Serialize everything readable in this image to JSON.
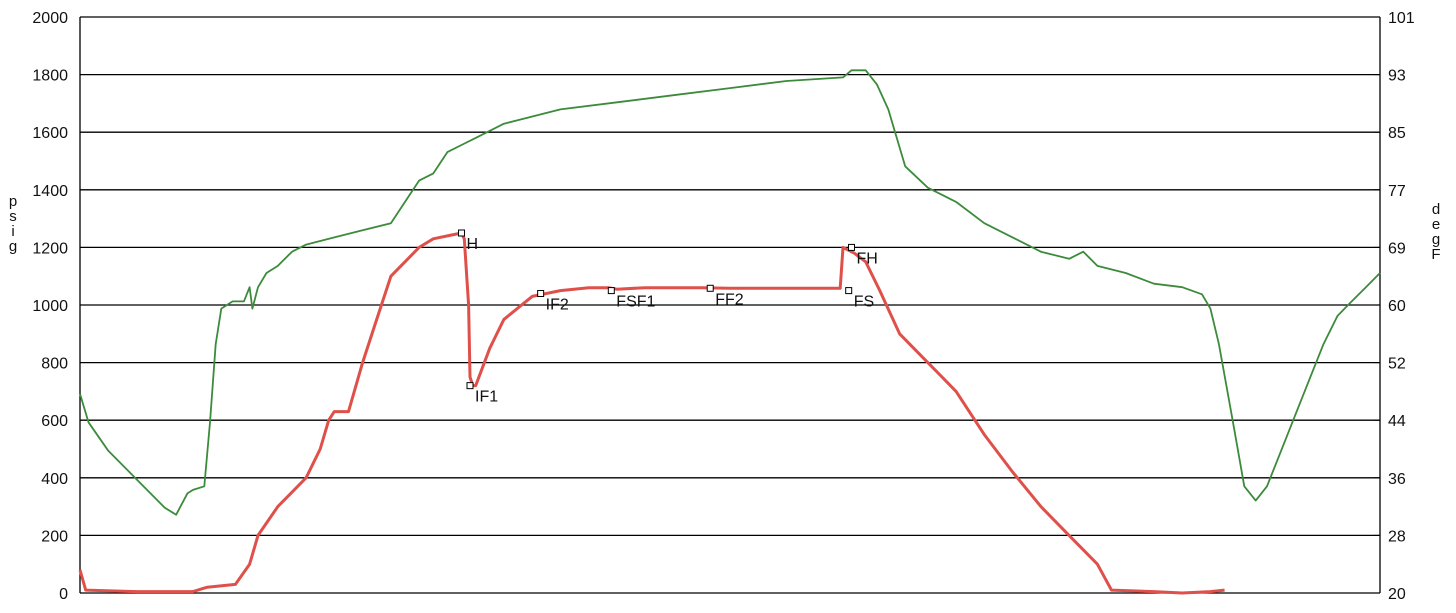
{
  "chart_data": {
    "type": "line",
    "grid": true,
    "x": [
      0,
      1,
      2,
      3,
      4,
      5,
      6,
      7,
      8,
      9,
      10,
      11,
      12,
      13,
      14,
      15,
      16,
      17,
      18,
      19,
      20,
      21,
      22,
      23,
      24,
      25,
      26,
      27,
      28,
      29,
      30,
      31,
      32,
      33,
      34,
      35,
      36,
      37,
      38,
      39,
      40
    ],
    "left_axis": {
      "label": "psig",
      "ylim": [
        0,
        2000
      ],
      "ticks": [
        "0",
        "200",
        "400",
        "600",
        "800",
        "1000",
        "1200",
        "1400",
        "1600",
        "1800",
        "2000"
      ]
    },
    "right_axis": {
      "label": "degF",
      "ylim": [
        20,
        101
      ],
      "ticks": [
        "20",
        "28",
        "36",
        "44",
        "52",
        "60",
        "69",
        "77",
        "85",
        "93",
        "101"
      ]
    },
    "series": [
      {
        "color": "#e0504a",
        "axis": "left",
        "points": [
          [
            0,
            80
          ],
          [
            0.2,
            10
          ],
          [
            2,
            5
          ],
          [
            4,
            5
          ],
          [
            4.5,
            20
          ],
          [
            5.5,
            30
          ],
          [
            6,
            100
          ],
          [
            6.3,
            200
          ],
          [
            7,
            300
          ],
          [
            7.5,
            350
          ],
          [
            8,
            400
          ],
          [
            8.5,
            500
          ],
          [
            8.8,
            600
          ],
          [
            9,
            630
          ],
          [
            9.5,
            630
          ],
          [
            10,
            800
          ],
          [
            10.5,
            950
          ],
          [
            11,
            1100
          ],
          [
            11.5,
            1150
          ],
          [
            12,
            1200
          ],
          [
            12.5,
            1230
          ],
          [
            13,
            1240
          ],
          [
            13.5,
            1250
          ],
          [
            13.6,
            1230
          ],
          [
            13.75,
            1000
          ],
          [
            13.8,
            750
          ],
          [
            13.9,
            720
          ],
          [
            14,
            720
          ],
          [
            14.5,
            850
          ],
          [
            15,
            950
          ],
          [
            16,
            1030
          ],
          [
            17,
            1050
          ],
          [
            18,
            1060
          ],
          [
            18.7,
            1060
          ],
          [
            19,
            1055
          ],
          [
            20,
            1060
          ],
          [
            21,
            1060
          ],
          [
            22,
            1060
          ],
          [
            23,
            1058
          ],
          [
            24,
            1058
          ],
          [
            25,
            1058
          ],
          [
            26,
            1058
          ],
          [
            26.9,
            1058
          ],
          [
            27,
            1200
          ],
          [
            27.4,
            1180
          ],
          [
            27.8,
            1150
          ],
          [
            28.3,
            1050
          ],
          [
            29,
            900
          ],
          [
            29.5,
            850
          ],
          [
            30,
            800
          ],
          [
            30.5,
            750
          ],
          [
            31,
            700
          ],
          [
            32,
            550
          ],
          [
            33,
            420
          ],
          [
            34,
            300
          ],
          [
            35,
            200
          ],
          [
            36,
            100
          ],
          [
            36.5,
            10
          ],
          [
            38,
            5
          ],
          [
            39,
            0
          ],
          [
            40,
            5
          ],
          [
            40.5,
            10
          ]
        ]
      },
      {
        "color": "#3b8b3b",
        "axis": "right",
        "points": [
          [
            0,
            48
          ],
          [
            0.3,
            44
          ],
          [
            1,
            40
          ],
          [
            2,
            36
          ],
          [
            3,
            32
          ],
          [
            3.4,
            31
          ],
          [
            3.8,
            34
          ],
          [
            4,
            34.5
          ],
          [
            4.4,
            35
          ],
          [
            4.6,
            44
          ],
          [
            4.8,
            55
          ],
          [
            5,
            60
          ],
          [
            5.4,
            61
          ],
          [
            5.8,
            61
          ],
          [
            6,
            63
          ],
          [
            6.1,
            60
          ],
          [
            6.3,
            63
          ],
          [
            6.6,
            65
          ],
          [
            7,
            66
          ],
          [
            7.5,
            68
          ],
          [
            8,
            69
          ],
          [
            9,
            70
          ],
          [
            10,
            71
          ],
          [
            11,
            72
          ],
          [
            11.5,
            75
          ],
          [
            12,
            78
          ],
          [
            12.5,
            79
          ],
          [
            13,
            82
          ],
          [
            13.5,
            83
          ],
          [
            14,
            84
          ],
          [
            14.5,
            85
          ],
          [
            15,
            86
          ],
          [
            17,
            88
          ],
          [
            19,
            89
          ],
          [
            21,
            90
          ],
          [
            23,
            91
          ],
          [
            25,
            92
          ],
          [
            27,
            92.5
          ],
          [
            27.3,
            93.5
          ],
          [
            27.8,
            93.5
          ],
          [
            28.2,
            91.5
          ],
          [
            28.6,
            88
          ],
          [
            29.2,
            80
          ],
          [
            30,
            77
          ],
          [
            31,
            75
          ],
          [
            32,
            72
          ],
          [
            33,
            70
          ],
          [
            34,
            68
          ],
          [
            35,
            67
          ],
          [
            35.5,
            68
          ],
          [
            36,
            66
          ],
          [
            37,
            65
          ],
          [
            38,
            63.5
          ],
          [
            39,
            63
          ],
          [
            39.7,
            62
          ],
          [
            40,
            60
          ],
          [
            40.3,
            55
          ],
          [
            40.8,
            44
          ],
          [
            41.2,
            35
          ],
          [
            41.6,
            33
          ],
          [
            42,
            35
          ],
          [
            42.5,
            40
          ],
          [
            43,
            45
          ],
          [
            43.5,
            50
          ],
          [
            44,
            55
          ],
          [
            44.5,
            59
          ],
          [
            45,
            61
          ],
          [
            45.5,
            63
          ],
          [
            46,
            65
          ]
        ]
      }
    ],
    "markers": [
      {
        "label": "H",
        "x": 13.5,
        "y": 1250,
        "label_side": "right-below"
      },
      {
        "label": "IF1",
        "x": 13.8,
        "y": 720,
        "label_side": "right-below"
      },
      {
        "label": "IF2",
        "x": 16.3,
        "y": 1040,
        "label_side": "right-below"
      },
      {
        "label": "FSF1",
        "x": 18.8,
        "y": 1050,
        "label_side": "right-below"
      },
      {
        "label": "FF2",
        "x": 22.3,
        "y": 1058,
        "label_side": "right-below"
      },
      {
        "label": "FH",
        "x": 27.3,
        "y": 1200,
        "label_side": "right-below"
      },
      {
        "label": "FS",
        "x": 27.2,
        "y": 1050,
        "label_side": "right-below"
      }
    ]
  }
}
